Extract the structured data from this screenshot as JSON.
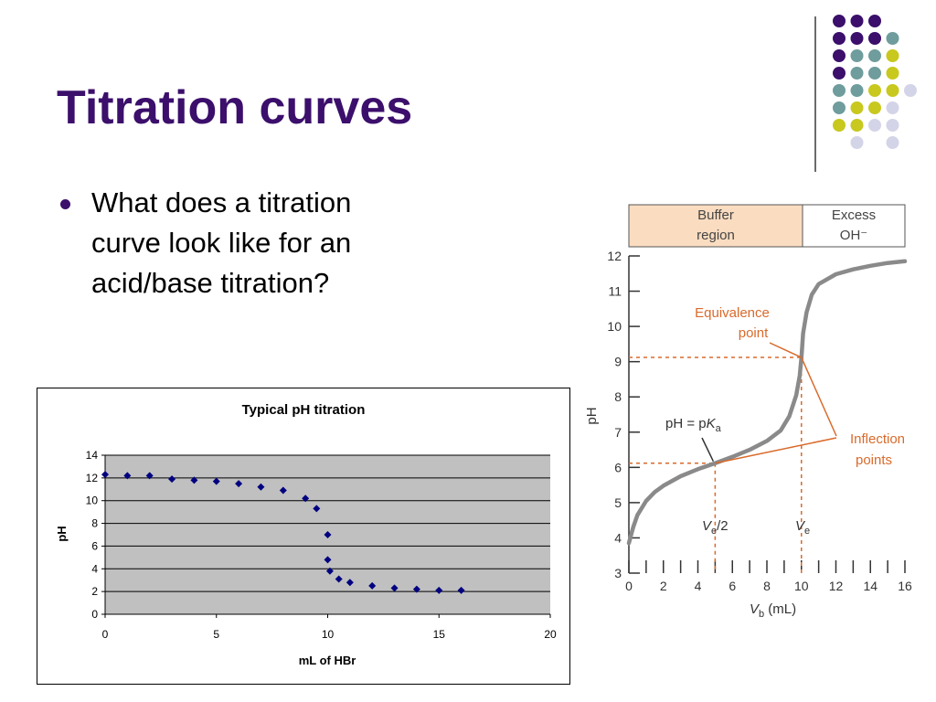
{
  "slide": {
    "title": "Titration curves",
    "bullet_text": "What does a titration curve look like for an acid/base titration?"
  },
  "decoration": {
    "colors": {
      "purple": "#3b0f6b",
      "teal": "#6f9c9c",
      "yellow": "#c8c81e",
      "lavender": "#d4d4e8"
    }
  },
  "chart_data": [
    {
      "type": "scatter",
      "title": "Typical pH titration",
      "xlabel": "mL of HBr",
      "ylabel": "pH",
      "xlim": [
        0,
        20
      ],
      "ylim": [
        0,
        14
      ],
      "xticks": [
        0,
        5,
        10,
        15,
        20
      ],
      "yticks": [
        0,
        2,
        4,
        6,
        8,
        10,
        12,
        14
      ],
      "grid": true,
      "plot_background": "#c0c0c0",
      "marker_color": "#000080",
      "x": [
        0,
        1,
        2,
        3,
        4,
        5,
        6,
        7,
        8,
        9,
        9.5,
        10,
        10,
        10.1,
        10.5,
        11,
        12,
        13,
        14,
        15,
        16
      ],
      "y": [
        12.3,
        12.2,
        12.2,
        11.9,
        11.8,
        11.7,
        11.5,
        11.2,
        10.9,
        10.2,
        9.3,
        7.0,
        4.8,
        3.8,
        3.1,
        2.8,
        2.5,
        2.3,
        2.2,
        2.1,
        2.1
      ]
    },
    {
      "type": "line",
      "xlabel_main": "V",
      "xlabel_sub": "b",
      "xlabel_unit": " (mL)",
      "ylabel": "pH",
      "xlim": [
        0,
        16
      ],
      "ylim": [
        3,
        12
      ],
      "xticks": [
        0,
        2,
        4,
        6,
        8,
        10,
        12,
        14,
        16
      ],
      "yticks": [
        3,
        4,
        5,
        6,
        7,
        8,
        9,
        10,
        11,
        12
      ],
      "curve_color": "#8a8a8a",
      "annotation_color": "#d96a2b",
      "x": [
        0,
        0.25,
        0.5,
        1,
        1.5,
        2,
        3,
        4,
        5,
        6,
        7,
        8,
        8.8,
        9.3,
        9.7,
        9.9,
        10,
        10.1,
        10.3,
        10.6,
        11,
        12,
        13,
        14,
        15,
        16
      ],
      "y": [
        3.85,
        4.3,
        4.65,
        5.05,
        5.3,
        5.48,
        5.75,
        5.95,
        6.12,
        6.3,
        6.5,
        6.75,
        7.05,
        7.45,
        8.05,
        8.6,
        9.12,
        9.8,
        10.4,
        10.9,
        11.2,
        11.48,
        11.62,
        11.72,
        11.8,
        11.85
      ],
      "regions": [
        {
          "line1": "Buffer",
          "line2": "region",
          "color": "#fadcc0"
        },
        {
          "line1": "Excess",
          "line2": "OH⁻",
          "color": "#ffffff"
        }
      ],
      "annotations": {
        "equivalence_line1": "Equivalence",
        "equivalence_line2": "point",
        "ph_pka_prefix": "pH = p",
        "ph_pka_K": "K",
        "ph_pka_sub": "a",
        "inflection_line1": "Inflection",
        "inflection_line2": "points",
        "ve_half_V": "V",
        "ve_half_sub": "e",
        "ve_half_rest": "/2",
        "ve_V": "V",
        "ve_sub": "e"
      },
      "equivalence_point": {
        "x": 10,
        "y": 9.12
      },
      "half_equivalence_point": {
        "x": 5,
        "y": 6.12
      }
    }
  ]
}
